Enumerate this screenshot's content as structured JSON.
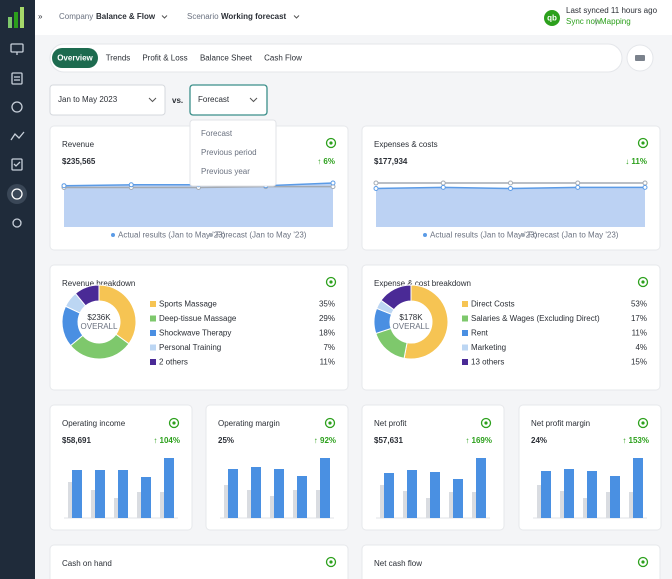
{
  "topbar": {
    "company_label": "Company",
    "company": "Balance & Flow",
    "scenario_label": "Scenario",
    "scenario": "Working forecast",
    "sync_status": "Last synced 11 hours ago",
    "sync_now": "Sync now",
    "separator": "|",
    "mapping": "Mapping"
  },
  "tabs": [
    "Overview",
    "Trends",
    "Profit & Loss",
    "Balance Sheet",
    "Cash Flow"
  ],
  "active_tab": 0,
  "period": "Jan to May 2023",
  "vs": "vs.",
  "comparison": "Forecast",
  "comparison_options": [
    "Forecast",
    "Previous period",
    "Previous year"
  ],
  "summary_cards": [
    {
      "title": "Revenue",
      "value": "$235,565",
      "change": "↑ 6%",
      "chart_data": {
        "type": "area",
        "series": [
          {
            "name": "Actual results (Jan to May '23)",
            "color": "#5b9be6",
            "values": [
              46,
              47,
              47,
              46,
              49
            ]
          },
          {
            "name": "Forecast (Jan to May '23)",
            "color": "#a3aab3",
            "values": [
              44,
              44,
              44,
              45,
              45
            ]
          }
        ]
      }
    },
    {
      "title": "Expenses & costs",
      "value": "$177,934",
      "change": "↓ 11%",
      "chart_data": {
        "type": "area",
        "series": [
          {
            "name": "Actual results (Jan to May '23)",
            "color": "#5b9be6",
            "values": [
              35,
              36,
              35,
              36,
              36
            ]
          },
          {
            "name": "Forecast (Jan to May '23)",
            "color": "#a3aab3",
            "values": [
              40,
              40,
              40,
              40,
              40
            ]
          }
        ]
      }
    }
  ],
  "breakdown_cards": [
    {
      "title": "Revenue breakdown",
      "center_value": "$236K",
      "center_label": "OVERALL",
      "chart_data": {
        "type": "pie",
        "categories": [
          "Sports Massage",
          "Deep-tissue Massage",
          "Shockwave Therapy",
          "Personal Training",
          "2 others"
        ],
        "values": [
          35,
          29,
          18,
          7,
          11
        ],
        "value_labels": [
          "35%",
          "29%",
          "18%",
          "7%",
          "11%"
        ],
        "colors": [
          "#f6c453",
          "#7ec86c",
          "#4a8fe2",
          "#bcd6f3",
          "#4a2a96"
        ]
      }
    },
    {
      "title": "Expense & cost breakdown",
      "center_value": "$178K",
      "center_label": "OVERALL",
      "chart_data": {
        "type": "pie",
        "categories": [
          "Direct Costs",
          "Salaries & Wages (Excluding Direct)",
          "Rent",
          "Marketing",
          "13 others"
        ],
        "values": [
          53,
          17,
          11,
          4,
          15
        ],
        "value_labels": [
          "53%",
          "17%",
          "11%",
          "4%",
          "15%"
        ],
        "colors": [
          "#f6c453",
          "#7ec86c",
          "#4a8fe2",
          "#bcd6f3",
          "#4a2a96"
        ]
      }
    }
  ],
  "metric_cards": [
    {
      "title": "Operating income",
      "value": "$58,691",
      "change": "↑ 104%",
      "chart_data": {
        "type": "bar",
        "series": [
          {
            "color": "#d9dce1",
            "values": [
              36,
              28,
              20,
              26,
              26
            ]
          },
          {
            "color": "#4a90e2",
            "values": [
              48,
              48,
              48,
              41,
              60
            ]
          }
        ]
      }
    },
    {
      "title": "Operating margin",
      "value": "25%",
      "change": "↑ 92%",
      "chart_data": {
        "type": "bar",
        "series": [
          {
            "color": "#d9dce1",
            "values": [
              33,
              28,
              22,
              28,
              28
            ]
          },
          {
            "color": "#4a90e2",
            "values": [
              49,
              51,
              49,
              42,
              60
            ]
          }
        ]
      }
    },
    {
      "title": "Net profit",
      "value": "$57,631",
      "change": "↑ 169%",
      "chart_data": {
        "type": "bar",
        "series": [
          {
            "color": "#d9dce1",
            "values": [
              33,
              27,
              20,
              26,
              26
            ]
          },
          {
            "color": "#4a90e2",
            "values": [
              45,
              48,
              46,
              39,
              60
            ]
          }
        ]
      }
    },
    {
      "title": "Net profit margin",
      "value": "24%",
      "change": "↑ 153%",
      "chart_data": {
        "type": "bar",
        "series": [
          {
            "color": "#d9dce1",
            "values": [
              33,
              27,
              20,
              26,
              26
            ]
          },
          {
            "color": "#4a90e2",
            "values": [
              47,
              49,
              47,
              42,
              60
            ]
          }
        ]
      }
    }
  ],
  "flow_cards": [
    {
      "title": "Cash on hand"
    },
    {
      "title": "Net cash flow"
    }
  ]
}
